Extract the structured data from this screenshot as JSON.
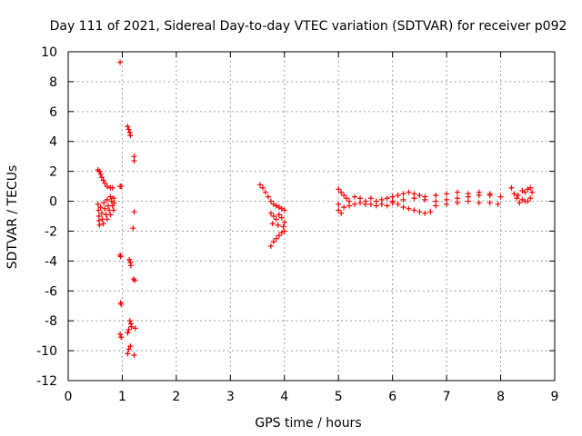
{
  "chart_data": {
    "type": "scatter",
    "title": "Day 111 of 2021, Sidereal Day-to-day VTEC variation (SDTVAR) for receiver p092",
    "xlabel": "GPS time / hours",
    "ylabel": "SDTVAR / TECUs",
    "xlim": [
      0,
      9
    ],
    "ylim": [
      -12,
      10
    ],
    "xticks": [
      0,
      1,
      2,
      3,
      4,
      5,
      6,
      7,
      8,
      9
    ],
    "yticks": [
      -12,
      -10,
      -8,
      -6,
      -4,
      -2,
      0,
      2,
      4,
      6,
      8,
      10
    ],
    "xtick_labels": [
      "0",
      "1",
      "2",
      "3",
      "4",
      "5",
      "6",
      "7",
      "8",
      "9"
    ],
    "ytick_labels": [
      "-12",
      "-10",
      "-8",
      "-6",
      "-4",
      "-2",
      "0",
      "2",
      "4",
      "6",
      "8",
      "10"
    ],
    "grid": true,
    "legend": "none",
    "marker": "plus",
    "colors": {
      "series": "#ff0000",
      "grid": "#a0a0a0",
      "axis": "#000000"
    },
    "series": [
      {
        "name": "SDTVAR",
        "points": [
          [
            0.96,
            9.3
          ],
          [
            1.1,
            5.0
          ],
          [
            1.12,
            4.8
          ],
          [
            1.14,
            4.6
          ],
          [
            1.15,
            4.4
          ],
          [
            1.22,
            3.0
          ],
          [
            1.22,
            2.7
          ],
          [
            0.55,
            2.1
          ],
          [
            0.58,
            2.0
          ],
          [
            0.6,
            1.8
          ],
          [
            0.62,
            1.6
          ],
          [
            0.65,
            1.4
          ],
          [
            0.68,
            1.2
          ],
          [
            0.72,
            1.0
          ],
          [
            0.78,
            0.9
          ],
          [
            0.82,
            0.9
          ],
          [
            0.96,
            1.0
          ],
          [
            0.98,
            1.0
          ],
          [
            0.55,
            -0.2
          ],
          [
            0.56,
            -0.6
          ],
          [
            0.57,
            -1.0
          ],
          [
            0.57,
            -1.3
          ],
          [
            0.58,
            -1.6
          ],
          [
            0.6,
            -0.4
          ],
          [
            0.62,
            -0.8
          ],
          [
            0.63,
            -1.2
          ],
          [
            0.65,
            -1.5
          ],
          [
            0.66,
            -0.1
          ],
          [
            0.68,
            -0.5
          ],
          [
            0.7,
            -0.9
          ],
          [
            0.72,
            -1.2
          ],
          [
            0.72,
            0.1
          ],
          [
            0.74,
            -0.3
          ],
          [
            0.76,
            -0.6
          ],
          [
            0.78,
            -0.9
          ],
          [
            0.78,
            0.3
          ],
          [
            0.8,
            0.0
          ],
          [
            0.82,
            -0.3
          ],
          [
            0.84,
            -0.6
          ],
          [
            0.84,
            0.2
          ],
          [
            0.85,
            -0.1
          ],
          [
            1.22,
            -0.7
          ],
          [
            1.2,
            -1.8
          ],
          [
            0.96,
            -3.6
          ],
          [
            0.97,
            -3.7
          ],
          [
            1.13,
            -3.9
          ],
          [
            1.15,
            -4.1
          ],
          [
            1.16,
            -4.3
          ],
          [
            1.21,
            -5.2
          ],
          [
            1.23,
            -5.3
          ],
          [
            0.97,
            -6.8
          ],
          [
            0.98,
            -6.9
          ],
          [
            1.14,
            -8.0
          ],
          [
            1.16,
            -8.2
          ],
          [
            1.17,
            -8.4
          ],
          [
            1.12,
            -8.6
          ],
          [
            1.1,
            -8.8
          ],
          [
            0.96,
            -8.9
          ],
          [
            0.98,
            -9.1
          ],
          [
            1.24,
            -8.5
          ],
          [
            1.15,
            -9.7
          ],
          [
            1.12,
            -9.9
          ],
          [
            1.1,
            -10.2
          ],
          [
            1.22,
            -10.3
          ],
          [
            3.55,
            1.1
          ],
          [
            3.6,
            0.9
          ],
          [
            3.65,
            0.6
          ],
          [
            3.7,
            0.3
          ],
          [
            3.75,
            0.0
          ],
          [
            3.8,
            -0.2
          ],
          [
            3.85,
            -0.3
          ],
          [
            3.9,
            -0.4
          ],
          [
            3.95,
            -0.5
          ],
          [
            4.0,
            -0.6
          ],
          [
            3.75,
            -0.8
          ],
          [
            3.8,
            -1.0
          ],
          [
            3.85,
            -1.2
          ],
          [
            3.9,
            -0.9
          ],
          [
            3.95,
            -1.1
          ],
          [
            4.0,
            -1.4
          ],
          [
            3.78,
            -1.5
          ],
          [
            3.88,
            -1.6
          ],
          [
            3.98,
            -1.7
          ],
          [
            3.75,
            -3.0
          ],
          [
            3.8,
            -2.7
          ],
          [
            3.85,
            -2.5
          ],
          [
            3.9,
            -2.3
          ],
          [
            3.95,
            -2.1
          ],
          [
            4.0,
            -2.0
          ],
          [
            5.0,
            0.8
          ],
          [
            5.05,
            0.6
          ],
          [
            5.1,
            0.4
          ],
          [
            5.15,
            0.2
          ],
          [
            5.2,
            0.0
          ],
          [
            5.3,
            0.3
          ],
          [
            5.4,
            0.2
          ],
          [
            5.5,
            0.0
          ],
          [
            5.0,
            -0.2
          ],
          [
            5.0,
            -0.6
          ],
          [
            5.05,
            -0.8
          ],
          [
            5.1,
            -0.4
          ],
          [
            5.2,
            -0.3
          ],
          [
            5.3,
            -0.2
          ],
          [
            5.4,
            -0.1
          ],
          [
            5.5,
            -0.2
          ],
          [
            5.6,
            0.2
          ],
          [
            5.7,
            0.0
          ],
          [
            5.8,
            0.1
          ],
          [
            5.9,
            0.2
          ],
          [
            6.0,
            0.3
          ],
          [
            6.1,
            0.4
          ],
          [
            6.2,
            0.5
          ],
          [
            6.3,
            0.6
          ],
          [
            6.4,
            0.5
          ],
          [
            6.5,
            0.4
          ],
          [
            5.6,
            -0.2
          ],
          [
            5.7,
            -0.3
          ],
          [
            5.8,
            -0.2
          ],
          [
            5.9,
            -0.3
          ],
          [
            6.0,
            -0.1
          ],
          [
            6.1,
            -0.2
          ],
          [
            6.2,
            -0.4
          ],
          [
            6.3,
            -0.5
          ],
          [
            6.4,
            -0.6
          ],
          [
            6.5,
            -0.7
          ],
          [
            6.6,
            -0.8
          ],
          [
            6.7,
            -0.7
          ],
          [
            6.0,
            0.0
          ],
          [
            6.2,
            0.1
          ],
          [
            6.4,
            0.2
          ],
          [
            6.6,
            0.1
          ],
          [
            6.8,
            0.0
          ],
          [
            7.0,
            0.1
          ],
          [
            7.2,
            0.2
          ],
          [
            7.4,
            0.3
          ],
          [
            7.6,
            0.4
          ],
          [
            7.8,
            0.4
          ],
          [
            8.0,
            0.3
          ],
          [
            6.6,
            0.3
          ],
          [
            6.8,
            0.4
          ],
          [
            7.0,
            0.5
          ],
          [
            7.2,
            0.6
          ],
          [
            7.4,
            0.5
          ],
          [
            7.6,
            0.6
          ],
          [
            7.8,
            0.5
          ],
          [
            6.8,
            -0.3
          ],
          [
            7.0,
            -0.2
          ],
          [
            7.2,
            -0.1
          ],
          [
            7.4,
            0.0
          ],
          [
            7.6,
            -0.1
          ],
          [
            7.8,
            -0.1
          ],
          [
            7.95,
            -0.2
          ],
          [
            8.2,
            0.9
          ],
          [
            8.25,
            0.5
          ],
          [
            8.3,
            0.2
          ],
          [
            8.35,
            -0.1
          ],
          [
            8.4,
            0.7
          ],
          [
            8.45,
            0.6
          ],
          [
            8.5,
            0.8
          ],
          [
            8.55,
            0.9
          ],
          [
            8.58,
            0.6
          ],
          [
            8.32,
            0.4
          ],
          [
            8.4,
            0.1
          ],
          [
            8.45,
            0.0
          ],
          [
            8.5,
            0.0
          ],
          [
            8.55,
            0.2
          ]
        ]
      }
    ]
  }
}
